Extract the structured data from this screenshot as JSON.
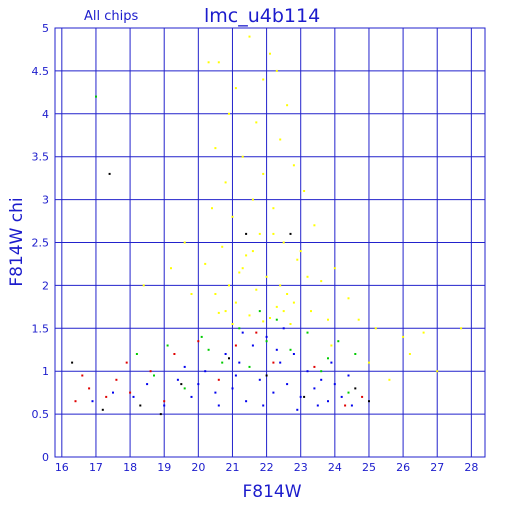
{
  "chart_data": {
    "type": "scatter",
    "title": "lmc_u4b114",
    "subtitle": "All chips",
    "xlabel": "F814W",
    "ylabel": "F814W chi",
    "xlim": [
      15.8,
      28.4
    ],
    "ylim": [
      0,
      5
    ],
    "x_ticks": [
      16,
      17,
      18,
      19,
      20,
      21,
      22,
      23,
      24,
      25,
      26,
      27,
      28
    ],
    "y_ticks": [
      0,
      0.5,
      1,
      1.5,
      2,
      2.5,
      3,
      3.5,
      4,
      4.5,
      5
    ],
    "grid": true,
    "series": [
      {
        "color": "#ffff00",
        "values": [
          [
            20.3,
            4.6
          ],
          [
            20.6,
            4.6
          ],
          [
            21.5,
            4.9
          ],
          [
            22.1,
            4.7
          ],
          [
            22.3,
            4.5
          ],
          [
            21.9,
            4.4
          ],
          [
            21.1,
            4.3
          ],
          [
            22.6,
            4.1
          ],
          [
            20.9,
            4.0
          ],
          [
            21.7,
            3.9
          ],
          [
            22.4,
            3.7
          ],
          [
            20.5,
            3.6
          ],
          [
            21.3,
            3.5
          ],
          [
            22.8,
            3.4
          ],
          [
            21.9,
            3.3
          ],
          [
            20.8,
            3.2
          ],
          [
            23.1,
            3.1
          ],
          [
            21.6,
            3.0
          ],
          [
            22.2,
            2.9
          ],
          [
            20.4,
            2.9
          ],
          [
            21.0,
            2.8
          ],
          [
            23.4,
            2.7
          ],
          [
            21.8,
            2.6
          ],
          [
            22.5,
            2.5
          ],
          [
            20.7,
            2.45
          ],
          [
            23.0,
            2.4
          ],
          [
            21.4,
            2.35
          ],
          [
            22.9,
            2.3
          ],
          [
            20.2,
            2.25
          ],
          [
            24.0,
            2.2
          ],
          [
            21.2,
            2.15
          ],
          [
            22.0,
            2.1
          ],
          [
            23.6,
            2.05
          ],
          [
            20.9,
            2.0
          ],
          [
            21.7,
            1.95
          ],
          [
            22.6,
            1.9
          ],
          [
            24.4,
            1.85
          ],
          [
            21.1,
            1.8
          ],
          [
            22.3,
            1.75
          ],
          [
            23.3,
            1.7
          ],
          [
            20.6,
            1.68
          ],
          [
            21.5,
            1.65
          ],
          [
            22.1,
            1.62
          ],
          [
            23.8,
            1.6
          ],
          [
            21.9,
            1.58
          ],
          [
            22.7,
            1.55
          ],
          [
            25.2,
            1.5
          ],
          [
            26.6,
            1.45
          ],
          [
            27.7,
            1.5
          ],
          [
            26.2,
            1.2
          ],
          [
            27.0,
            1.0
          ],
          [
            25.6,
            0.9
          ],
          [
            19.6,
            2.5
          ],
          [
            19.2,
            2.2
          ],
          [
            18.4,
            2.0
          ],
          [
            19.8,
            1.9
          ],
          [
            23.9,
            1.3
          ],
          [
            25.0,
            1.1
          ],
          [
            26.0,
            1.4
          ],
          [
            24.7,
            1.6
          ],
          [
            22.4,
            2.0
          ],
          [
            21.3,
            2.2
          ],
          [
            20.8,
            1.7
          ],
          [
            22.8,
            1.8
          ],
          [
            21.6,
            2.4
          ],
          [
            22.2,
            2.6
          ],
          [
            23.2,
            2.1
          ],
          [
            21.0,
            1.55
          ],
          [
            22.5,
            1.7
          ],
          [
            20.5,
            1.9
          ]
        ]
      },
      {
        "color": "#00cc00",
        "values": [
          [
            17.0,
            4.2
          ],
          [
            18.2,
            1.2
          ],
          [
            19.1,
            1.3
          ],
          [
            20.1,
            1.4
          ],
          [
            21.2,
            1.5
          ],
          [
            22.3,
            1.6
          ],
          [
            23.2,
            1.45
          ],
          [
            24.1,
            1.35
          ],
          [
            24.6,
            1.2
          ],
          [
            21.8,
            1.7
          ],
          [
            19.6,
            0.8
          ],
          [
            22.7,
            1.25
          ],
          [
            20.7,
            1.1
          ],
          [
            23.6,
            1.0
          ],
          [
            24.4,
            0.75
          ],
          [
            18.7,
            0.95
          ],
          [
            20.3,
            1.25
          ],
          [
            22.0,
            1.35
          ],
          [
            23.8,
            1.15
          ],
          [
            21.5,
            1.05
          ]
        ]
      },
      {
        "color": "#e00000",
        "values": [
          [
            16.4,
            0.65
          ],
          [
            16.8,
            0.8
          ],
          [
            17.3,
            0.7
          ],
          [
            17.6,
            0.9
          ],
          [
            18.0,
            0.75
          ],
          [
            18.6,
            1.0
          ],
          [
            19.3,
            1.2
          ],
          [
            20.0,
            1.35
          ],
          [
            21.1,
            1.3
          ],
          [
            22.2,
            1.1
          ],
          [
            23.4,
            1.05
          ],
          [
            24.3,
            0.6
          ],
          [
            24.8,
            0.7
          ],
          [
            19.0,
            0.65
          ],
          [
            20.6,
            0.9
          ],
          [
            16.6,
            0.95
          ],
          [
            17.9,
            1.1
          ],
          [
            21.7,
            1.45
          ]
        ]
      },
      {
        "color": "#000000",
        "values": [
          [
            16.3,
            1.1
          ],
          [
            17.4,
            3.3
          ],
          [
            17.2,
            0.55
          ],
          [
            18.3,
            0.6
          ],
          [
            19.5,
            0.85
          ],
          [
            20.9,
            1.15
          ],
          [
            22.0,
            0.95
          ],
          [
            23.1,
            0.7
          ],
          [
            24.6,
            0.8
          ],
          [
            25.0,
            0.65
          ],
          [
            21.4,
            2.6
          ],
          [
            22.7,
            2.6
          ],
          [
            18.9,
            0.5
          ]
        ]
      },
      {
        "color": "#0000ee",
        "values": [
          [
            16.9,
            0.65
          ],
          [
            17.5,
            0.75
          ],
          [
            18.1,
            0.7
          ],
          [
            18.5,
            0.85
          ],
          [
            19.0,
            0.6
          ],
          [
            19.4,
            0.9
          ],
          [
            19.8,
            0.7
          ],
          [
            20.2,
            1.0
          ],
          [
            20.5,
            0.75
          ],
          [
            20.8,
            1.2
          ],
          [
            21.0,
            0.8
          ],
          [
            21.2,
            1.1
          ],
          [
            21.4,
            0.65
          ],
          [
            21.6,
            1.3
          ],
          [
            21.8,
            0.9
          ],
          [
            22.0,
            1.4
          ],
          [
            22.2,
            0.75
          ],
          [
            22.4,
            1.1
          ],
          [
            22.6,
            0.85
          ],
          [
            22.8,
            1.2
          ],
          [
            23.0,
            0.7
          ],
          [
            23.2,
            1.0
          ],
          [
            23.4,
            0.8
          ],
          [
            23.6,
            0.9
          ],
          [
            23.8,
            0.65
          ],
          [
            24.0,
            0.85
          ],
          [
            24.2,
            0.7
          ],
          [
            24.4,
            0.95
          ],
          [
            21.3,
            1.45
          ],
          [
            22.5,
            1.5
          ],
          [
            20.6,
            0.6
          ],
          [
            23.9,
            1.1
          ],
          [
            21.9,
            0.6
          ],
          [
            20.0,
            0.85
          ],
          [
            22.9,
            0.55
          ],
          [
            21.1,
            0.95
          ],
          [
            23.5,
            0.6
          ],
          [
            19.6,
            1.05
          ],
          [
            22.3,
            1.25
          ],
          [
            24.5,
            0.6
          ]
        ]
      }
    ]
  }
}
